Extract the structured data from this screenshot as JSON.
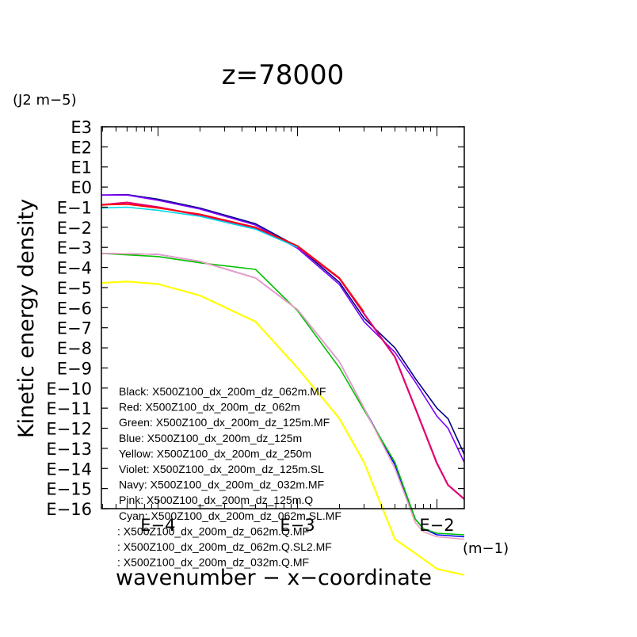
{
  "chart_data": {
    "type": "line",
    "title": "z=78000",
    "xlabel": "wavenumber − x−coordinate",
    "xunit": "(m−1)",
    "ylabel": "Kinetic energy density",
    "yunit": "(J2 m−5)",
    "x_scale": "log",
    "y_scale": "log",
    "xlim": [
      3.93e-05,
      0.0157
    ],
    "ylim_exponent": [
      -16,
      3
    ],
    "x_ticks": [
      {
        "value": 0.0001,
        "label": "E−4"
      },
      {
        "value": 0.001,
        "label": "E−3"
      },
      {
        "value": 0.01,
        "label": "E−2"
      }
    ],
    "y_ticks": [
      {
        "exp": 3,
        "label": "E3"
      },
      {
        "exp": 2,
        "label": "E2"
      },
      {
        "exp": 1,
        "label": "E1"
      },
      {
        "exp": 0,
        "label": "E0"
      },
      {
        "exp": -1,
        "label": "E−1"
      },
      {
        "exp": -2,
        "label": "E−2"
      },
      {
        "exp": -3,
        "label": "E−3"
      },
      {
        "exp": -4,
        "label": "E−4"
      },
      {
        "exp": -5,
        "label": "E−5"
      },
      {
        "exp": -6,
        "label": "E−6"
      },
      {
        "exp": -7,
        "label": "E−7"
      },
      {
        "exp": -8,
        "label": "E−8"
      },
      {
        "exp": -9,
        "label": "E−9"
      },
      {
        "exp": -10,
        "label": "E−10"
      },
      {
        "exp": -11,
        "label": "E−11"
      },
      {
        "exp": -12,
        "label": "E−12"
      },
      {
        "exp": -13,
        "label": "E−13"
      },
      {
        "exp": -14,
        "label": "E−14"
      },
      {
        "exp": -15,
        "label": "E−15"
      },
      {
        "exp": -16,
        "label": "E−16"
      }
    ],
    "grid": false,
    "legend_position": "bottom-left",
    "legend": [
      "Black: X500Z100_dx_200m_dz_062m.MF",
      "Red: X500Z100_dx_200m_dz_062m",
      "Green: X500Z100_dx_200m_dz_125m.MF",
      "Blue: X500Z100_dx_200m_dz_125m",
      "Yellow: X500Z100_dx_200m_dz_250m",
      "Violet: X500Z100_dx_200m_dz_125m.SL",
      "Navy: X500Z100_dx_200m_dz_032m.MF",
      "Pink: X500Z100_dx_200m_dz_125m.Q",
      "Cyan: X500Z100_dx_200m_dz_062m.SL.MF",
      ": X500Z100_dx_200m_dz_062m.Q.MF",
      ": X500Z100_dx_200m_dz_062m.Q.SL2.MF",
      ": X500Z100_dx_200m_dz_032m.Q.MF"
    ],
    "series": [
      {
        "color": "#000080",
        "x": [
          3.93e-05,
          6e-05,
          0.0001,
          0.0002,
          0.0005,
          0.001,
          0.002,
          0.003,
          0.005,
          0.007,
          0.01,
          0.012,
          0.0157
        ],
        "y": [
          0.4,
          0.42,
          0.25,
          0.09,
          0.015,
          0.0011,
          1.8e-05,
          3e-07,
          1e-08,
          3e-10,
          1e-11,
          3e-12,
          5e-14
        ]
      },
      {
        "color": "#8000ff",
        "x": [
          3.93e-05,
          6e-05,
          0.0001,
          0.0002,
          0.0005,
          0.001,
          0.002,
          0.003,
          0.005,
          0.007,
          0.01,
          0.012,
          0.0157
        ],
        "y": [
          0.4,
          0.4,
          0.22,
          0.08,
          0.013,
          0.0009,
          1.4e-05,
          2e-07,
          6e-09,
          2e-10,
          4e-12,
          1e-12,
          2e-14
        ]
      },
      {
        "color": "#e00070",
        "x": [
          3.93e-05,
          6e-05,
          0.0001,
          0.0002,
          0.0005,
          0.001,
          0.002,
          0.003,
          0.005,
          0.007,
          0.01,
          0.012,
          0.0157
        ],
        "y": [
          0.13,
          0.17,
          0.1,
          0.04,
          0.009,
          0.0011,
          2.8e-05,
          5e-07,
          3.5e-09,
          1e-11,
          1.8e-14,
          1.5e-15,
          3e-16
        ]
      },
      {
        "color": "#ff0000",
        "x": [
          3.93e-05,
          6e-05,
          0.0001,
          0.0002,
          0.0005,
          0.001,
          0.002,
          0.003
        ],
        "y": [
          0.13,
          0.14,
          0.09,
          0.045,
          0.01,
          0.0012,
          3e-05,
          6e-07
        ]
      },
      {
        "color": "#00d8e8",
        "x": [
          3.93e-05,
          6e-05,
          0.0001,
          0.0002,
          0.0005,
          0.001
        ],
        "y": [
          0.09,
          0.1,
          0.07,
          0.035,
          0.008,
          0.001
        ]
      },
      {
        "color": "#0000ff",
        "x": [
          3.93e-05,
          0.0001,
          0.0002,
          0.0005,
          0.001,
          0.002,
          0.003,
          0.005,
          0.007,
          0.008,
          0.01,
          0.0157
        ],
        "y": [
          0.0005,
          0.00045,
          0.0002,
          3e-05,
          8e-07,
          2e-09,
          1e-11,
          1.5e-14,
          3e-17,
          1e-17,
          5e-18,
          4e-18
        ]
      },
      {
        "color": "#00c000",
        "x": [
          3.93e-05,
          0.0001,
          0.0002,
          0.0005,
          0.001,
          0.002,
          0.003,
          0.005,
          0.007,
          0.008,
          0.01,
          0.0157
        ],
        "y": [
          0.0005,
          0.00035,
          0.00017,
          8e-05,
          7e-07,
          1e-09,
          8e-12,
          2e-14,
          3e-17,
          1e-17,
          6e-18,
          5e-18
        ]
      },
      {
        "color": "#f4a0c0",
        "x": [
          3.93e-05,
          0.0001,
          0.0002,
          0.0005,
          0.001,
          0.002,
          0.003,
          0.005,
          0.007,
          0.008,
          0.01,
          0.0157
        ],
        "y": [
          0.0005,
          0.00045,
          0.0002,
          3e-05,
          8e-07,
          2e-09,
          1e-11,
          1e-14,
          2e-17,
          7e-18,
          4e-18,
          3e-18
        ]
      },
      {
        "color": "#ffff00",
        "x": [
          3.93e-05,
          6e-05,
          0.0001,
          0.0002,
          0.0005,
          0.001,
          0.002,
          0.003,
          0.005,
          0.007,
          0.01,
          0.0157
        ],
        "y": [
          1.7e-05,
          2e-05,
          1.5e-05,
          4e-06,
          2e-07,
          1e-09,
          3e-12,
          2e-14,
          3e-18,
          6e-19,
          1e-19,
          5e-20
        ]
      }
    ]
  }
}
